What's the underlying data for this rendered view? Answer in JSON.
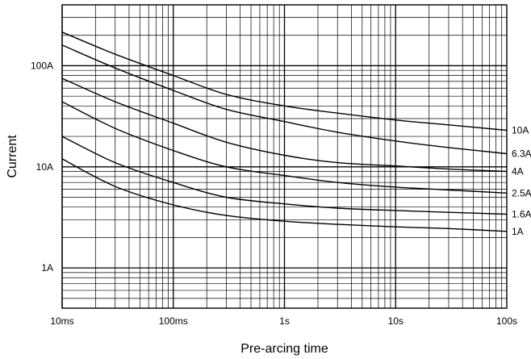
{
  "chart_data": {
    "type": "line",
    "title": "",
    "xlabel": "Pre-arcing time",
    "ylabel": "Current",
    "x_scale": "log",
    "y_scale": "log",
    "xlim": [
      "10ms",
      "100s"
    ],
    "ylim": [
      "0.4A",
      "400A"
    ],
    "grid": true,
    "x_tick_labels": [
      "10ms",
      "100ms",
      "1s",
      "10s",
      "100s"
    ],
    "y_tick_labels": [
      "1A",
      "10A",
      "100A"
    ],
    "x_seconds": [
      0.01,
      0.03,
      0.1,
      0.3,
      1,
      3,
      10,
      30,
      100
    ],
    "series": [
      {
        "name": "10A",
        "values": [
          215,
          130,
          80,
          52,
          40,
          34,
          29,
          26,
          23
        ]
      },
      {
        "name": "6.3A",
        "values": [
          160,
          95,
          57,
          37,
          28,
          22,
          18,
          15.5,
          13.5
        ]
      },
      {
        "name": "4A",
        "values": [
          75,
          44,
          27,
          17.5,
          13,
          11,
          10.2,
          9.5,
          9
        ]
      },
      {
        "name": "2.5A",
        "values": [
          44,
          24,
          14.5,
          10,
          8.2,
          7,
          6.3,
          5.9,
          5.5
        ]
      },
      {
        "name": "1.6A",
        "values": [
          20,
          11,
          7,
          5,
          4.3,
          3.9,
          3.7,
          3.55,
          3.4
        ]
      },
      {
        "name": "1A",
        "values": [
          12,
          6.4,
          4.2,
          3.3,
          2.9,
          2.7,
          2.55,
          2.45,
          2.3
        ]
      }
    ]
  }
}
